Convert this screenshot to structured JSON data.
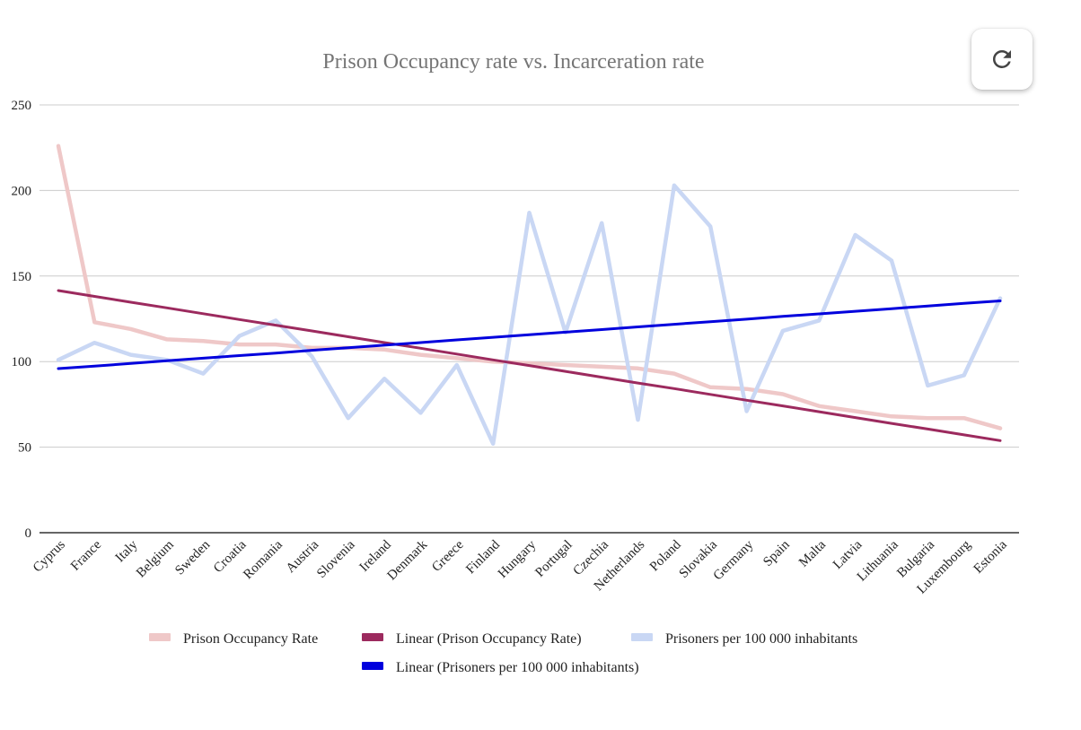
{
  "chart_data": {
    "type": "line",
    "title": "Prison Occupancy rate vs. Incarceration rate",
    "xlabel": "",
    "ylabel": "",
    "ylim": [
      0,
      250
    ],
    "yticks": [
      0,
      50,
      100,
      150,
      200,
      250
    ],
    "grid": true,
    "legend_position": "bottom",
    "categories": [
      "Cyprus",
      "France",
      "Italy",
      "Belgium",
      "Sweden",
      "Croatia",
      "Romania",
      "Austria",
      "Slovenia",
      "Ireland",
      "Denmark",
      "Greece",
      "Finland",
      "Hungary",
      "Portugal",
      "Czechia",
      "Netherlands",
      "Poland",
      "Slovakia",
      "Germany",
      "Spain",
      "Malta",
      "Latvia",
      "Lithuania",
      "Bulgaria",
      "Luxembourg",
      "Estonia"
    ],
    "series": [
      {
        "name": "Prison Occupancy Rate",
        "color": "#efc8c8",
        "values": [
          226,
          123,
          119,
          113,
          112,
          110,
          110,
          108,
          108,
          107,
          104,
          102,
          100,
          99,
          98,
          97,
          96,
          93,
          85,
          84,
          81,
          74,
          71,
          68,
          67,
          67,
          61
        ]
      },
      {
        "name": "Linear (Prison Occupancy Rate)",
        "color": "#9c2a5e",
        "trend": true,
        "values": [
          141.5,
          138.1,
          134.7,
          131.4,
          128.0,
          124.6,
          121.3,
          117.9,
          114.5,
          111.1,
          107.8,
          104.4,
          101.0,
          97.7,
          94.3,
          90.9,
          87.5,
          84.2,
          80.8,
          77.4,
          74.1,
          70.7,
          67.3,
          63.9,
          60.6,
          57.2,
          53.8
        ]
      },
      {
        "name": "Prisoners per 100 000 inhabitants",
        "color": "#c9d7f4",
        "values": [
          101,
          111,
          104,
          101,
          93,
          115,
          124,
          103,
          67,
          90,
          70,
          98,
          52,
          187,
          117,
          181,
          66,
          203,
          179,
          71,
          118,
          124,
          174,
          159,
          86,
          92,
          137
        ]
      },
      {
        "name": "Linear (Prisoners per 100 000 inhabitants)",
        "color": "#0000dd",
        "trend": true,
        "values": [
          95.9,
          97.4,
          98.9,
          100.5,
          102.0,
          103.5,
          105.0,
          106.6,
          108.1,
          109.6,
          111.1,
          112.7,
          114.2,
          115.7,
          117.2,
          118.7,
          120.3,
          121.8,
          123.3,
          124.8,
          126.4,
          127.9,
          129.4,
          130.9,
          132.5,
          134.0,
          135.5
        ]
      }
    ]
  },
  "controls": {
    "refresh_icon": "refresh-icon"
  }
}
